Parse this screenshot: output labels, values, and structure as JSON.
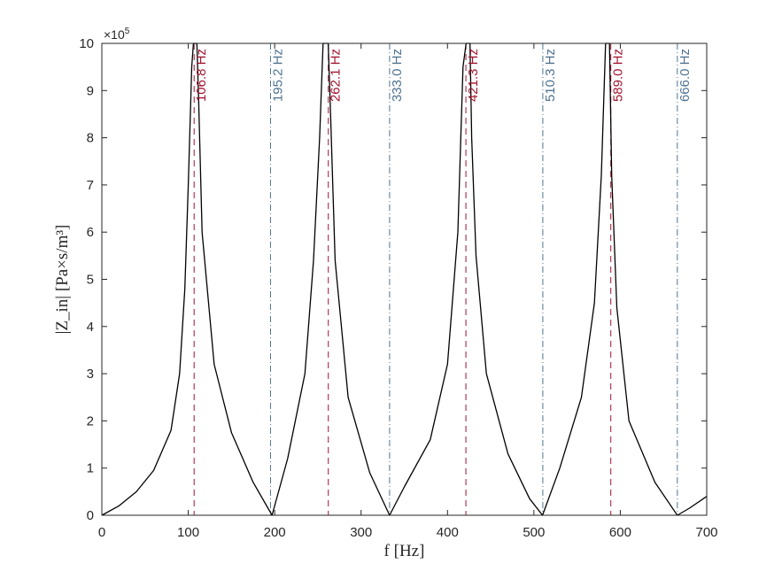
{
  "chart_data": {
    "type": "line",
    "xlabel": "f [Hz]",
    "ylabel": "|Z_in| [Pa×s/m³]",
    "xlim": [
      0,
      700
    ],
    "ylim": [
      0,
      1000000
    ],
    "y_scale_label": "×10",
    "y_scale_exponent": "5",
    "x_ticks": [
      0,
      100,
      200,
      300,
      400,
      500,
      600,
      700
    ],
    "x_tick_labels": [
      "0",
      "100",
      "200",
      "300",
      "400",
      "500",
      "600",
      "700"
    ],
    "y_ticks": [
      0,
      100000,
      200000,
      300000,
      400000,
      500000,
      600000,
      700000,
      800000,
      900000,
      1000000
    ],
    "y_tick_labels": [
      "0",
      "1",
      "2",
      "3",
      "4",
      "5",
      "6",
      "7",
      "8",
      "9",
      "10"
    ],
    "grid": false,
    "series": [
      {
        "color": "#000000",
        "x": [
          0,
          20,
          40,
          60,
          80,
          90,
          96,
          100,
          104,
          106,
          107.8,
          110,
          112,
          116,
          130,
          150,
          175,
          197,
          215,
          235,
          245,
          252,
          256,
          258.5,
          260,
          262,
          265,
          270,
          285,
          310,
          333,
          350,
          380,
          400,
          412,
          418,
          421.5,
          424,
          426,
          428,
          433,
          445,
          470,
          495,
          510,
          530,
          555,
          570,
          578,
          583,
          586,
          587.5,
          590,
          596,
          610,
          640,
          666,
          680,
          700
        ],
        "y": [
          0,
          20000,
          50000,
          95000,
          180000,
          300000,
          480000,
          700000,
          950000,
          1000000,
          1000000,
          1000000,
          880000,
          600000,
          320000,
          175000,
          70000,
          0,
          120000,
          300000,
          540000,
          800000,
          1000000,
          1000000,
          1000000,
          1000000,
          830000,
          540000,
          250000,
          90000,
          0,
          60000,
          160000,
          320000,
          600000,
          950000,
          1000000,
          1000000,
          1000000,
          800000,
          550000,
          300000,
          130000,
          35000,
          0,
          100000,
          250000,
          450000,
          720000,
          1000000,
          1000000,
          1000000,
          720000,
          440000,
          200000,
          70000,
          0,
          15000,
          40000
        ]
      }
    ],
    "resonance_markers": {
      "color": "#a2142f",
      "style": "dashed",
      "values": [
        106.8,
        262.1,
        421.3,
        589.0
      ],
      "labels": [
        "106.8 Hz",
        "262.1 Hz",
        "421.3 Hz",
        "589.0 Hz"
      ]
    },
    "antiresonance_markers": {
      "color": "#4f7392",
      "style": "dash-dot",
      "values": [
        195.2,
        333.0,
        510.3,
        666.0
      ],
      "labels": [
        "195.2 Hz",
        "333.0 Hz",
        "510.3 Hz",
        "666.0 Hz"
      ]
    }
  }
}
